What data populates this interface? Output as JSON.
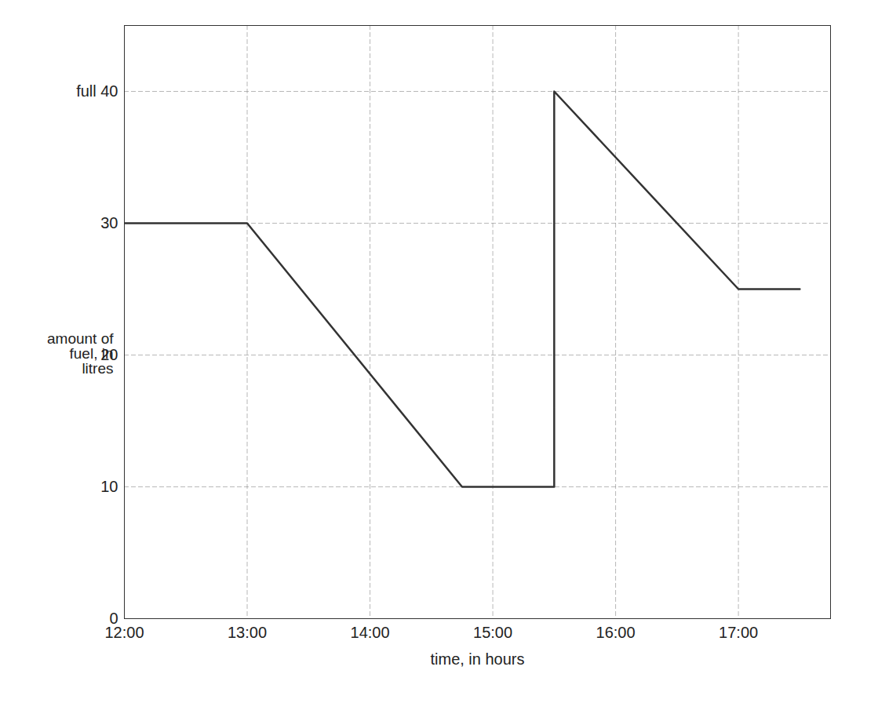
{
  "chart_data": {
    "type": "line",
    "x_label": "time, in hours",
    "y_label": "amount of fuel, in litres",
    "x": [
      12,
      13,
      14.75,
      15.5,
      15.5,
      17,
      17.5
    ],
    "values": [
      30,
      30,
      10,
      10,
      40,
      25,
      25
    ],
    "color": "#333333",
    "xlim": [
      12,
      17.75
    ],
    "ylim": [
      0,
      45
    ],
    "xticks": [
      {
        "value": 12,
        "label": "12:00"
      },
      {
        "value": 13,
        "label": "13:00"
      },
      {
        "value": 14,
        "label": "14:00"
      },
      {
        "value": 15,
        "label": "15:00"
      },
      {
        "value": 16,
        "label": "16:00"
      },
      {
        "value": 17,
        "label": "17:00"
      }
    ],
    "yticks": [
      0,
      10,
      20,
      30,
      {
        "value": 40,
        "label": "full 40"
      }
    ],
    "grid": true
  }
}
